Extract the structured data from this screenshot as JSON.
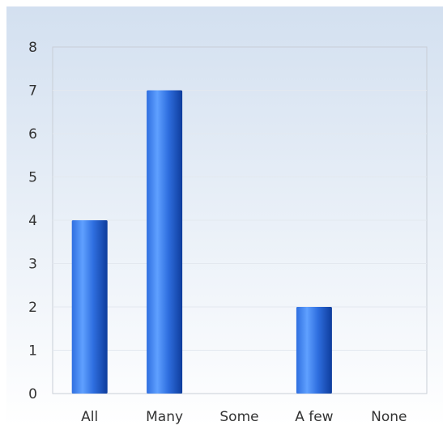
{
  "chart_data": {
    "type": "bar",
    "categories": [
      "All",
      "Many",
      "Some",
      "A few",
      "None"
    ],
    "values": [
      4,
      7,
      0,
      2,
      0
    ],
    "ylim": [
      0,
      8
    ],
    "yticks": [
      0,
      1,
      2,
      3,
      4,
      5,
      6,
      7,
      8
    ],
    "grid": true,
    "legend": "none",
    "colors": {
      "background_top": "#d3e0f0",
      "background_bottom": "#ffffff",
      "bar_light": "#5fa0ff",
      "bar_mid": "#2f6fe0",
      "bar_dark": "#0e3c9c",
      "gridline": "#e3e8ef",
      "axis": "#c8ced6"
    }
  }
}
